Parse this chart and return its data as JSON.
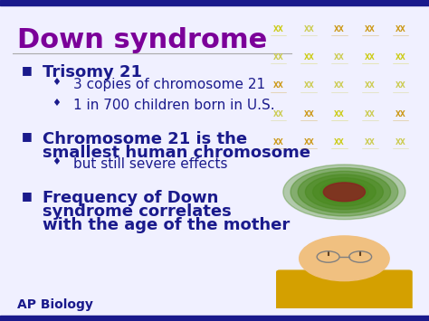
{
  "title": "Down syndrome",
  "title_color": "#7B0099",
  "title_fontsize": 22,
  "bg_color": "#F0F0FF",
  "top_bar_color": "#1a1a8c",
  "top_bar_height": 0.018,
  "bottom_bar_color": "#1a1a8c",
  "footer_text": "AP Biology",
  "footer_color": "#1a1a8c",
  "footer_fontsize": 10,
  "title_underline_color": "#aaaaaa",
  "bullet_color": "#1a1a8c",
  "sub_bullet_color": "#1a1a8c",
  "bullet_symbol": "■",
  "sub_bullet_symbol": "♦",
  "bullets": [
    {
      "text": "Trisomy 21",
      "fontsize": 13,
      "bold": true,
      "color": "#1a1a8c",
      "sub_bullets": [
        {
          "text": "3 copies of chromosome 21",
          "fontsize": 11,
          "color": "#1a1a8c"
        },
        {
          "text": "1 in 700 children born in U.S.",
          "fontsize": 11,
          "color": "#1a1a8c"
        }
      ]
    },
    {
      "text": "Chromosome 21 is the\nsmallest human chromosome",
      "fontsize": 13,
      "bold": true,
      "color": "#1a1a8c",
      "sub_bullets": [
        {
          "text": "but still severe effects",
          "fontsize": 11,
          "color": "#1a1a8c"
        }
      ]
    },
    {
      "text": "Frequency of Down\nsyndrome correlates\nwith the age of the mother",
      "fontsize": 13,
      "bold": true,
      "color": "#1a1a8c",
      "sub_bullets": []
    }
  ],
  "img1_color": "#007080",
  "img2_bg": "#d4a0b0",
  "img2_cell_color": "#4a8a20",
  "img2_inner_color": "#8b2020",
  "img3_bg": "#b09060",
  "img3_face_color": "#f0c080",
  "img3_shirt_color": "#d4a000"
}
